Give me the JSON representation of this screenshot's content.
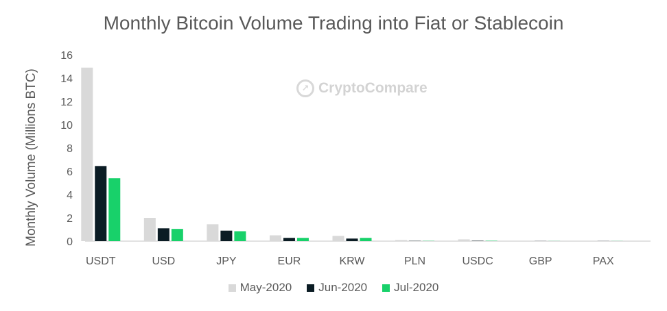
{
  "chart_data": {
    "type": "bar",
    "title": "Monthly Bitcoin Volume Trading into Fiat or Stablecoin",
    "ylabel": "Monthly Volume (Millions BTC)",
    "xlabel": "",
    "ylim": [
      0,
      16
    ],
    "yticks": [
      "0",
      "2",
      "4",
      "6",
      "8",
      "10",
      "12",
      "14",
      "16"
    ],
    "grid": false,
    "legend_position": "bottom",
    "categories": [
      "USDT",
      "USD",
      "JPY",
      "EUR",
      "KRW",
      "PLN",
      "USDC",
      "GBP",
      "PAX"
    ],
    "series": [
      {
        "name": "May-2020",
        "color": "#d9d9d9",
        "values": [
          14.9,
          2.0,
          1.45,
          0.5,
          0.45,
          0.1,
          0.15,
          0.02,
          0.02
        ]
      },
      {
        "name": "Jun-2020",
        "color": "#0b1c24",
        "values": [
          6.45,
          1.1,
          0.9,
          0.28,
          0.22,
          0.02,
          0.03,
          0.01,
          0.01
        ]
      },
      {
        "name": "Jul-2020",
        "color": "#18d16a",
        "values": [
          5.4,
          1.05,
          0.85,
          0.28,
          0.28,
          0.02,
          0.03,
          0.01,
          0.01
        ]
      }
    ]
  },
  "watermark": {
    "text": "CryptoCompare",
    "icon": "cryptocompare-logo-icon"
  }
}
